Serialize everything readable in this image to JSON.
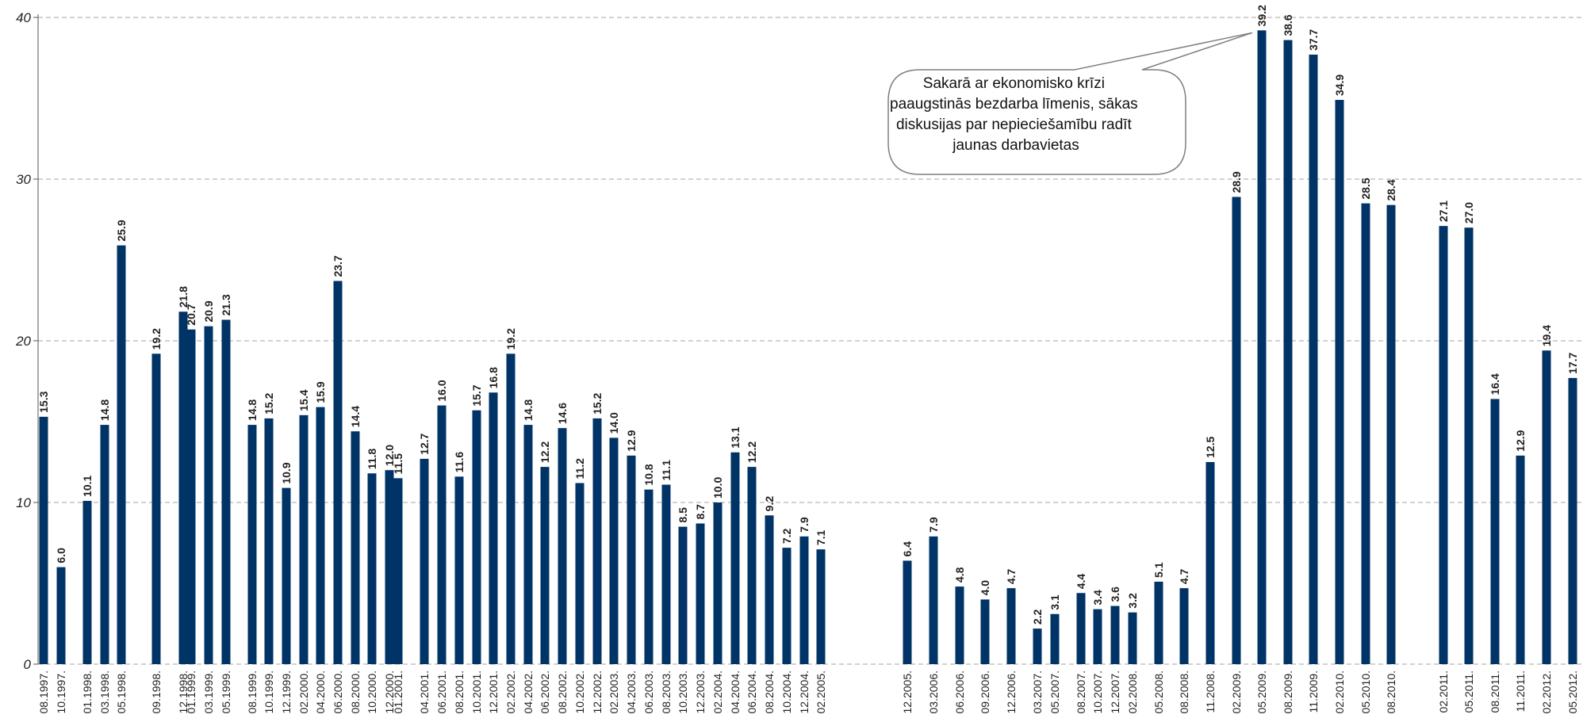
{
  "chart_data": {
    "type": "bar",
    "title": "",
    "xlabel": "",
    "ylabel": "",
    "ylim": [
      0,
      40
    ],
    "yticks": [
      0,
      10,
      20,
      30,
      40
    ],
    "grid": true,
    "bar_color": "#003366",
    "gridline_color": "#a6a6a6",
    "categories": [
      "08.1997.",
      "10.1997.",
      "01.1998.",
      "03.1998.",
      "05.1998.",
      "09.1998.",
      "12.1998.",
      "01.1999.",
      "03.1999.",
      "05.1999.",
      "08.1999.",
      "10.1999.",
      "12.1999.",
      "02.2000.",
      "04.2000.",
      "06.2000.",
      "08.2000.",
      "10.2000.",
      "12.2000.",
      "01.2001.",
      "04.2001.",
      "06.2001.",
      "08.2001.",
      "10.2001.",
      "12.2001.",
      "02.2002.",
      "04.2002.",
      "06.2002.",
      "08.2002.",
      "10.2002.",
      "12.2002.",
      "02.2003.",
      "04.2003.",
      "06.2003.",
      "08.2003.",
      "10.2003.",
      "12.2003.",
      "02.2004.",
      "04.2004.",
      "06.2004.",
      "08.2004.",
      "10.2004.",
      "12.2004.",
      "02.2005.",
      "12.2005.",
      "03.2006.",
      "06.2006.",
      "09.2006.",
      "12.2006.",
      "03.2007.",
      "05.2007.",
      "08.2007.",
      "10.2007.",
      "12.2007.",
      "02.2008.",
      "05.2008.",
      "08.2008.",
      "11.2008.",
      "02.2009.",
      "05.2009.",
      "08.2009.",
      "11.2009.",
      "02.2010.",
      "05.2010.",
      "08.2010.",
      "02.2011.",
      "05.2011.",
      "08.2011.",
      "11.2011.",
      "02.2012.",
      "05.2012."
    ],
    "values": [
      15.3,
      6.0,
      10.1,
      14.8,
      25.9,
      19.2,
      21.8,
      20.7,
      20.9,
      21.3,
      14.8,
      15.2,
      10.9,
      15.4,
      15.9,
      23.7,
      14.4,
      11.8,
      12.0,
      11.5,
      12.7,
      16.0,
      11.6,
      15.7,
      16.8,
      19.2,
      14.8,
      12.2,
      14.6,
      11.2,
      15.2,
      14.0,
      12.9,
      10.8,
      11.1,
      8.5,
      8.7,
      10.0,
      13.1,
      12.2,
      9.2,
      7.2,
      7.9,
      7.1,
      6.4,
      7.9,
      4.8,
      4.0,
      4.7,
      2.2,
      3.1,
      4.4,
      3.4,
      3.6,
      3.2,
      5.1,
      4.7,
      12.5,
      28.9,
      39.2,
      38.6,
      37.7,
      34.9,
      28.5,
      28.4,
      27.1,
      27.0,
      16.4,
      12.9,
      19.4,
      17.7
    ],
    "value_labels": [
      "15.3",
      "6.0",
      "10.1",
      "14.8",
      "25.9",
      "19.2",
      "21.8",
      "20.7",
      "20.9",
      "21.3",
      "14.8",
      "15.2",
      "10.9",
      "15.4",
      "15.9",
      "23.7",
      "14.4",
      "11.8",
      "12.0",
      "11.5",
      "12.7",
      "16.0",
      "11.6",
      "15.7",
      "16.8",
      "19.2",
      "14.8",
      "12.2",
      "14.6",
      "11.2",
      "15.2",
      "14.0",
      "12.9",
      "10.8",
      "11.1",
      "8.5",
      "8.7",
      "10.0",
      "13.1",
      "12.2",
      "9.2",
      "7.2",
      "7.9",
      "7.1",
      "6.4",
      "7.9",
      "4.8",
      "4.0",
      "4.7",
      "2.2",
      "3.1",
      "4.4",
      "3.4",
      "3.6",
      "3.2",
      "5.1",
      "4.7",
      "12.5",
      "28.9",
      "39.2",
      "38.6",
      "37.7",
      "34.9",
      "28.5",
      "28.4",
      "27.1",
      "27.0",
      "16.4",
      "12.9",
      "19.4",
      "17.7"
    ],
    "annotations": [
      {
        "text_lines": [
          "Sakarā ar ekonomisko krīzi",
          "paaugstinās bezdarba līmenis, sākas",
          "diskusijas par nepieciešamību radīt",
          "jaunas darbavietas"
        ],
        "points_to": "05.2009."
      }
    ]
  }
}
